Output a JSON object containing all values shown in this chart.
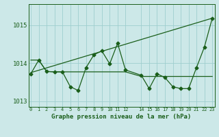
{
  "title": "Graphe pression niveau de la mer (hPa)",
  "background_color": "#cce8e8",
  "grid_color": "#9ecece",
  "line_color": "#1a5e1a",
  "hours": [
    0,
    1,
    2,
    3,
    4,
    5,
    6,
    7,
    8,
    9,
    10,
    11,
    12,
    14,
    15,
    16,
    17,
    18,
    19,
    20,
    21,
    22,
    23
  ],
  "pressure_main": [
    1013.72,
    1014.08,
    1013.78,
    1013.77,
    1013.77,
    1013.38,
    1013.28,
    1013.88,
    1014.22,
    1014.32,
    1013.98,
    1014.52,
    1013.82,
    1013.68,
    1013.33,
    1013.72,
    1013.62,
    1013.38,
    1013.33,
    1013.33,
    1013.88,
    1014.42,
    1015.18
  ],
  "flat_line": [
    1014.08,
    1014.08,
    1013.78,
    1013.77,
    1013.77,
    1013.77,
    1013.77,
    1013.77,
    1013.77,
    1013.77,
    1013.77,
    1013.77,
    1013.77,
    1013.65,
    1013.65,
    1013.65,
    1013.65,
    1013.65,
    1013.65,
    1013.65,
    1013.65,
    1013.65,
    1013.65
  ],
  "trend_line_x": [
    0,
    23
  ],
  "trend_line_y": [
    1013.75,
    1015.18
  ],
  "ylim": [
    1012.85,
    1015.55
  ],
  "yticks": [
    1013,
    1014,
    1015
  ],
  "xlim": [
    -0.3,
    23.3
  ],
  "xtick_positions": [
    0,
    1,
    2,
    3,
    4,
    5,
    6,
    7,
    8,
    9,
    10,
    11,
    12,
    14,
    15,
    16,
    17,
    18,
    19,
    20,
    21,
    22,
    23
  ],
  "xtick_labels": [
    "0",
    "1",
    "2",
    "3",
    "4",
    "5",
    "6",
    "7",
    "8",
    "9",
    "10",
    "11",
    "12",
    "14",
    "15",
    "16",
    "17",
    "18",
    "19",
    "20",
    "21",
    "22",
    "23"
  ]
}
